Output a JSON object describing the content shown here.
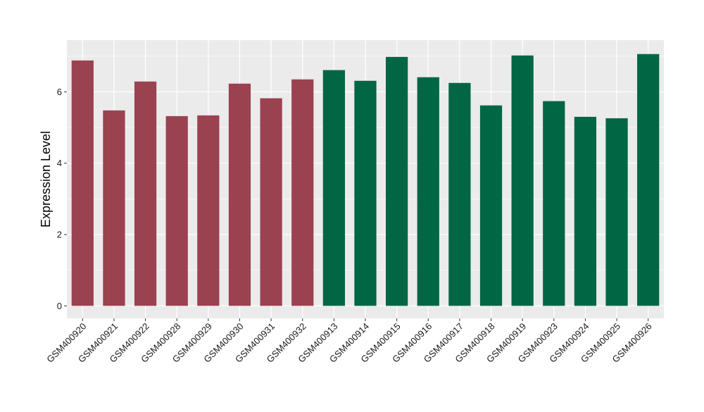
{
  "chart_data": {
    "type": "bar",
    "title": "",
    "xlabel": "",
    "ylabel": "Expression Level",
    "ylim": [
      -0.35,
      7.45
    ],
    "yticks": [
      0,
      2,
      4,
      6
    ],
    "grid": true,
    "legend": "none",
    "categories": [
      "GSM400920",
      "GSM400921",
      "GSM400922",
      "GSM400928",
      "GSM400929",
      "GSM400930",
      "GSM400931",
      "GSM400932",
      "GSM400913",
      "GSM400914",
      "GSM400915",
      "GSM400916",
      "GSM400917",
      "GSM400918",
      "GSM400919",
      "GSM400923",
      "GSM400924",
      "GSM400925",
      "GSM400926"
    ],
    "values": [
      6.88,
      5.48,
      6.29,
      5.32,
      5.34,
      6.23,
      5.82,
      6.35,
      6.61,
      6.31,
      6.98,
      6.41,
      6.25,
      5.62,
      7.02,
      5.74,
      5.3,
      5.26,
      7.06
    ],
    "groups": [
      "a",
      "a",
      "a",
      "a",
      "a",
      "a",
      "a",
      "a",
      "b",
      "b",
      "b",
      "b",
      "b",
      "b",
      "b",
      "b",
      "b",
      "b",
      "b"
    ],
    "colors": {
      "a": "#9b4250",
      "b": "#006644"
    },
    "panel_background": "#ebebeb",
    "gridline_color": "#ffffff"
  }
}
